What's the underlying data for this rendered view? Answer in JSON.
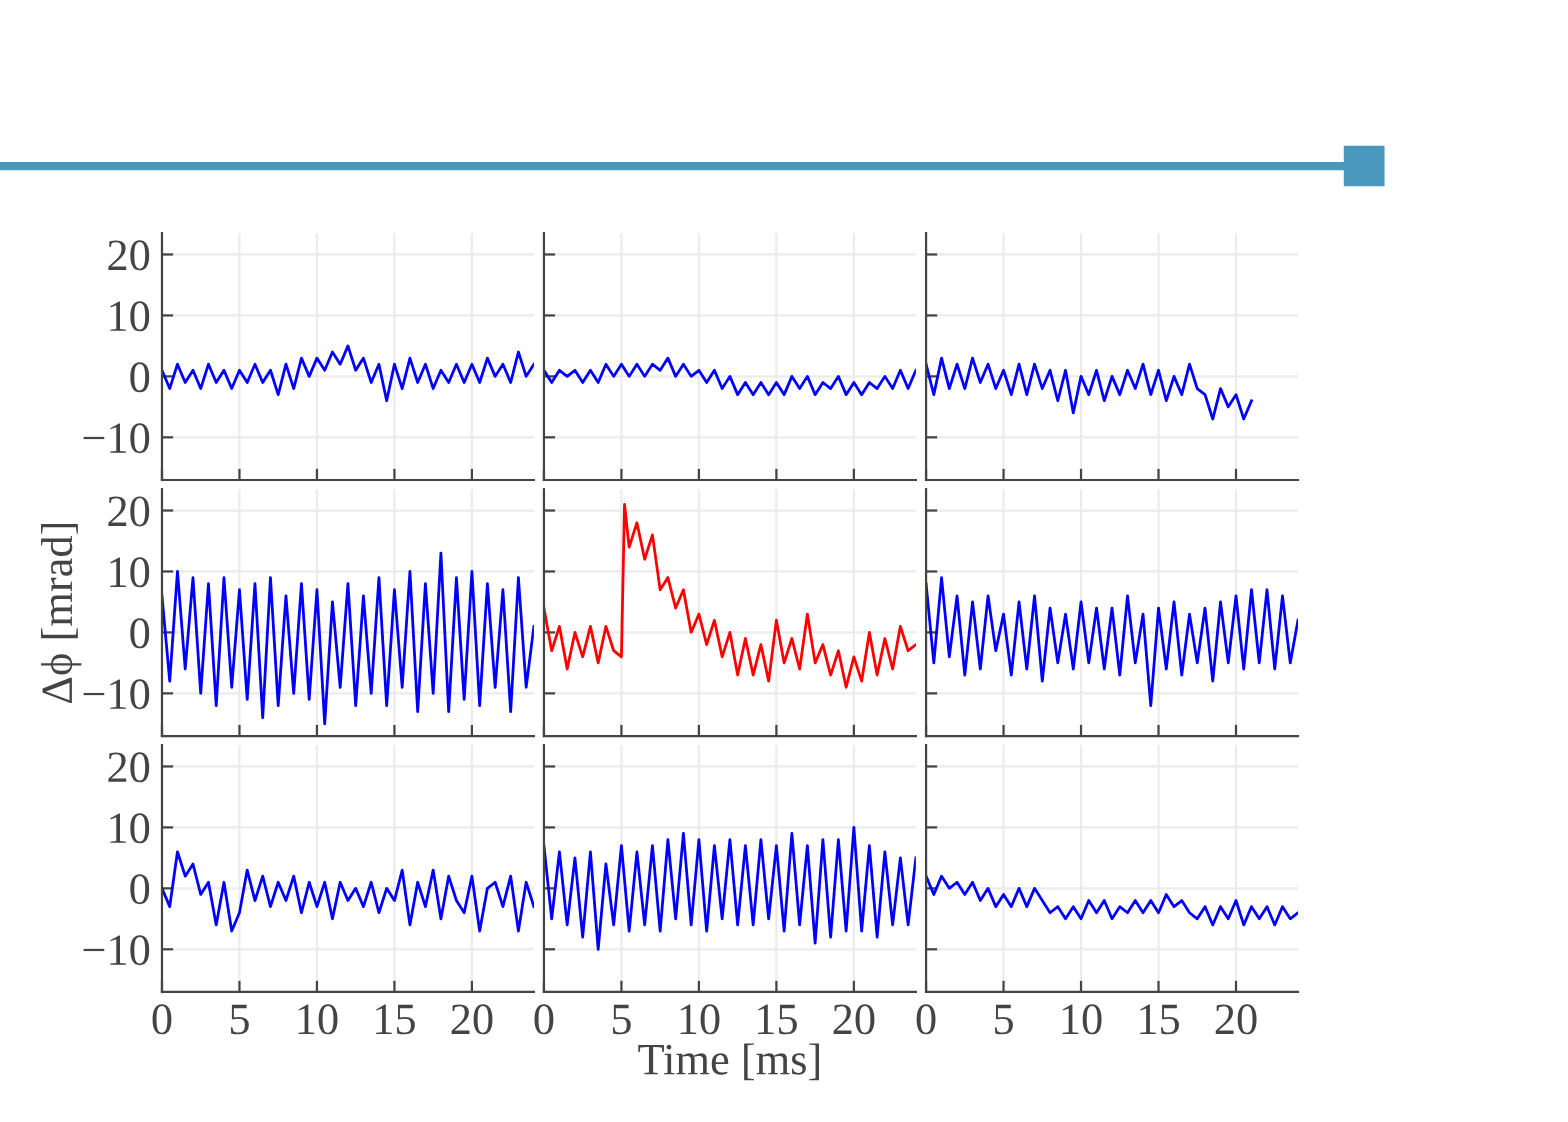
{
  "chart_data": [
    {
      "type": "line",
      "x": [
        0,
        0.5,
        1,
        1.5,
        2,
        2.5,
        3,
        3.5,
        4,
        4.5,
        5,
        5.5,
        6,
        6.5,
        7,
        7.5,
        8,
        8.5,
        9,
        9.5,
        10,
        10.5,
        11,
        11.5,
        12,
        12.5,
        13,
        13.5,
        14,
        14.5,
        15,
        15.5,
        16,
        16.5,
        17,
        17.5,
        18,
        18.5,
        19,
        19.5,
        20,
        20.5,
        21,
        21.5,
        22,
        22.5,
        23,
        23.5,
        24
      ],
      "series": [
        {
          "color": "#0000ff",
          "values": [
            1,
            -2,
            2,
            -1,
            1,
            -2,
            2,
            -1,
            1,
            -2,
            1,
            -1,
            2,
            -1,
            1,
            -3,
            2,
            -2,
            3,
            0,
            3,
            1,
            4,
            2,
            5,
            1,
            3,
            -1,
            2,
            -4,
            2,
            -2,
            3,
            -1,
            2,
            -2,
            1,
            -1,
            2,
            -1,
            2,
            -1,
            3,
            0,
            2,
            -1,
            4,
            0,
            2
          ]
        }
      ],
      "xlim": [
        0,
        24
      ],
      "ylim": [
        -17,
        23.5
      ],
      "xticks": [
        0,
        5,
        10,
        15,
        20
      ],
      "yticks": [
        -10,
        0,
        10,
        20
      ],
      "grid": true,
      "tick_labels": "y"
    },
    {
      "type": "line",
      "x": [
        0,
        0.5,
        1,
        1.5,
        2,
        2.5,
        3,
        3.5,
        4,
        4.5,
        5,
        5.5,
        6,
        6.5,
        7,
        7.5,
        8,
        8.5,
        9,
        9.5,
        10,
        10.5,
        11,
        11.5,
        12,
        12.5,
        13,
        13.5,
        14,
        14.5,
        15,
        15.5,
        16,
        16.5,
        17,
        17.5,
        18,
        18.5,
        19,
        19.5,
        20,
        20.5,
        21,
        21.5,
        22,
        22.5,
        23,
        23.5,
        24
      ],
      "series": [
        {
          "color": "#0000ff",
          "values": [
            1,
            -1,
            1,
            0,
            1,
            -1,
            1,
            -1,
            2,
            0,
            2,
            0,
            2,
            0,
            2,
            1,
            3,
            0,
            2,
            0,
            1,
            -1,
            1,
            -2,
            0,
            -3,
            -1,
            -3,
            -1,
            -3,
            -1,
            -3,
            0,
            -2,
            0,
            -3,
            -1,
            -2,
            0,
            -3,
            -1,
            -3,
            -1,
            -2,
            0,
            -2,
            1,
            -2,
            1
          ]
        }
      ],
      "xlim": [
        0,
        24
      ],
      "ylim": [
        -17,
        23.5
      ],
      "xticks": [
        0,
        5,
        10,
        15,
        20
      ],
      "yticks": [
        -10,
        0,
        10,
        20
      ],
      "grid": true,
      "tick_labels": false
    },
    {
      "type": "line",
      "x": [
        0,
        0.5,
        1,
        1.5,
        2,
        2.5,
        3,
        3.5,
        4,
        4.5,
        5,
        5.5,
        6,
        6.5,
        7,
        7.5,
        8,
        8.5,
        9,
        9.5,
        10,
        10.5,
        11,
        11.5,
        12,
        12.5,
        13,
        13.5,
        14,
        14.5,
        15,
        15.5,
        16,
        16.5,
        17,
        17.5,
        18,
        18.5,
        19,
        19.5,
        20,
        20.5,
        21
      ],
      "series": [
        {
          "color": "#0000ff",
          "values": [
            2,
            -3,
            3,
            -2,
            2,
            -2,
            3,
            -1,
            2,
            -2,
            1,
            -3,
            2,
            -3,
            2,
            -2,
            1,
            -4,
            1,
            -6,
            0,
            -3,
            1,
            -4,
            0,
            -3,
            1,
            -2,
            2,
            -3,
            1,
            -4,
            0,
            -3,
            2,
            -2,
            -3,
            -7,
            -2,
            -5,
            -3,
            -7,
            -4
          ]
        }
      ],
      "xlim": [
        0,
        24
      ],
      "ylim": [
        -17,
        23.5
      ],
      "xticks": [
        0,
        5,
        10,
        15,
        20
      ],
      "yticks": [
        -10,
        0,
        10,
        20
      ],
      "grid": true,
      "tick_labels": false
    },
    {
      "type": "line",
      "x": [
        0,
        0.5,
        1,
        1.5,
        2,
        2.5,
        3,
        3.5,
        4,
        4.5,
        5,
        5.5,
        6,
        6.5,
        7,
        7.5,
        8,
        8.5,
        9,
        9.5,
        10,
        10.5,
        11,
        11.5,
        12,
        12.5,
        13,
        13.5,
        14,
        14.5,
        15,
        15.5,
        16,
        16.5,
        17,
        17.5,
        18,
        18.5,
        19,
        19.5,
        20,
        20.5,
        21,
        21.5,
        22,
        22.5,
        23,
        23.5,
        24
      ],
      "series": [
        {
          "color": "#0000ff",
          "values": [
            6,
            -8,
            10,
            -6,
            9,
            -10,
            8,
            -12,
            9,
            -9,
            7,
            -11,
            8,
            -14,
            9,
            -12,
            6,
            -10,
            8,
            -11,
            7,
            -15,
            5,
            -9,
            8,
            -12,
            6,
            -10,
            9,
            -12,
            7,
            -9,
            10,
            -13,
            8,
            -10,
            13,
            -13,
            9,
            -11,
            10,
            -12,
            8,
            -9,
            7,
            -13,
            9,
            -9,
            1
          ]
        }
      ],
      "xlim": [
        0,
        24
      ],
      "ylim": [
        -17,
        23.5
      ],
      "xticks": [
        0,
        5,
        10,
        15,
        20
      ],
      "yticks": [
        -10,
        0,
        10,
        20
      ],
      "grid": true,
      "tick_labels": "y",
      "ylabel": "Δϕ [mrad]"
    },
    {
      "type": "line",
      "x": [
        0,
        0.5,
        1,
        1.5,
        2,
        2.5,
        3,
        3.5,
        4,
        4.5,
        5,
        5.2,
        5.5,
        6,
        6.5,
        7,
        7.5,
        8,
        8.5,
        9,
        9.5,
        10,
        10.5,
        11,
        11.5,
        12,
        12.5,
        13,
        13.5,
        14,
        14.5,
        15,
        15.5,
        16,
        16.5,
        17,
        17.5,
        18,
        18.5,
        19,
        19.5,
        20,
        20.5,
        21,
        21.5,
        22,
        22.5,
        23,
        23.5,
        24
      ],
      "series": [
        {
          "color": "#ff0000",
          "values": [
            4,
            -3,
            1,
            -6,
            0,
            -4,
            1,
            -5,
            1,
            -3,
            -4,
            21,
            14,
            18,
            12,
            16,
            7,
            9,
            4,
            7,
            0,
            3,
            -2,
            2,
            -4,
            0,
            -7,
            -1,
            -7,
            -2,
            -8,
            2,
            -5,
            -1,
            -6,
            3,
            -5,
            -2,
            -7,
            -3,
            -9,
            -4,
            -8,
            0,
            -7,
            -1,
            -6,
            1,
            -3,
            -2
          ]
        }
      ],
      "xlim": [
        0,
        24
      ],
      "ylim": [
        -17,
        23.5
      ],
      "xticks": [
        0,
        5,
        10,
        15,
        20
      ],
      "yticks": [
        -10,
        0,
        10,
        20
      ],
      "grid": true,
      "tick_labels": false
    },
    {
      "type": "line",
      "x": [
        0,
        0.5,
        1,
        1.5,
        2,
        2.5,
        3,
        3.5,
        4,
        4.5,
        5,
        5.5,
        6,
        6.5,
        7,
        7.5,
        8,
        8.5,
        9,
        9.5,
        10,
        10.5,
        11,
        11.5,
        12,
        12.5,
        13,
        13.5,
        14,
        14.5,
        15,
        15.5,
        16,
        16.5,
        17,
        17.5,
        18,
        18.5,
        19,
        19.5,
        20,
        20.5,
        21,
        21.5,
        22,
        22.5,
        23,
        23.5,
        24
      ],
      "series": [
        {
          "color": "#0000ff",
          "values": [
            8,
            -5,
            9,
            -4,
            6,
            -7,
            5,
            -6,
            6,
            -3,
            3,
            -7,
            5,
            -6,
            6,
            -8,
            4,
            -5,
            3,
            -6,
            5,
            -5,
            4,
            -6,
            4,
            -7,
            6,
            -5,
            3,
            -12,
            4,
            -6,
            5,
            -7,
            3,
            -5,
            4,
            -8,
            5,
            -5,
            6,
            -6,
            7,
            -5,
            7,
            -6,
            6,
            -5,
            2
          ]
        }
      ],
      "xlim": [
        0,
        24
      ],
      "ylim": [
        -17,
        23.5
      ],
      "xticks": [
        0,
        5,
        10,
        15,
        20
      ],
      "yticks": [
        -10,
        0,
        10,
        20
      ],
      "grid": true,
      "tick_labels": false
    },
    {
      "type": "line",
      "x": [
        0,
        0.5,
        1,
        1.5,
        2,
        2.5,
        3,
        3.5,
        4,
        4.5,
        5,
        5.5,
        6,
        6.5,
        7,
        7.5,
        8,
        8.5,
        9,
        9.5,
        10,
        10.5,
        11,
        11.5,
        12,
        12.5,
        13,
        13.5,
        14,
        14.5,
        15,
        15.5,
        16,
        16.5,
        17,
        17.5,
        18,
        18.5,
        19,
        19.5,
        20,
        20.5,
        21,
        21.5,
        22,
        22.5,
        23,
        23.5,
        24
      ],
      "series": [
        {
          "color": "#0000ff",
          "values": [
            0,
            -3,
            6,
            2,
            4,
            -1,
            1,
            -6,
            1,
            -7,
            -4,
            3,
            -2,
            2,
            -3,
            1,
            -2,
            2,
            -4,
            1,
            -3,
            1,
            -5,
            1,
            -2,
            0,
            -3,
            1,
            -4,
            0,
            -2,
            3,
            -6,
            1,
            -3,
            3,
            -5,
            2,
            -2,
            -4,
            2,
            -7,
            0,
            1,
            -3,
            2,
            -7,
            1,
            -3
          ]
        }
      ],
      "xlim": [
        0,
        24
      ],
      "ylim": [
        -17,
        23.5
      ],
      "xticks": [
        0,
        5,
        10,
        15,
        20
      ],
      "yticks": [
        -10,
        0,
        10,
        20
      ],
      "grid": true
    },
    {
      "type": "line",
      "x": [
        0,
        0.5,
        1,
        1.5,
        2,
        2.5,
        3,
        3.5,
        4,
        4.5,
        5,
        5.5,
        6,
        6.5,
        7,
        7.5,
        8,
        8.5,
        9,
        9.5,
        10,
        10.5,
        11,
        11.5,
        12,
        12.5,
        13,
        13.5,
        14,
        14.5,
        15,
        15.5,
        16,
        16.5,
        17,
        17.5,
        18,
        18.5,
        19,
        19.5,
        20,
        20.5,
        21,
        21.5,
        22,
        22.5,
        23,
        23.5,
        24
      ],
      "series": [
        {
          "color": "#0000ff",
          "values": [
            7,
            -5,
            6,
            -6,
            5,
            -8,
            6,
            -10,
            4,
            -6,
            7,
            -7,
            6,
            -6,
            7,
            -7,
            8,
            -5,
            9,
            -6,
            8,
            -7,
            7,
            -5,
            8,
            -6,
            7,
            -6,
            8,
            -5,
            7,
            -7,
            9,
            -6,
            7,
            -9,
            8,
            -8,
            8,
            -7,
            10,
            -7,
            7,
            -8,
            6,
            -6,
            5,
            -6,
            5
          ]
        }
      ],
      "xlim": [
        0,
        24
      ],
      "ylim": [
        -17,
        23.5
      ],
      "xticks": [
        0,
        5,
        10,
        15,
        20
      ],
      "yticks": [
        -10,
        0,
        10,
        20
      ],
      "grid": true,
      "tick_labels": "x",
      "xlabel": "Time [ms]"
    },
    {
      "type": "line",
      "x": [
        0,
        0.5,
        1,
        1.5,
        2,
        2.5,
        3,
        3.5,
        4,
        4.5,
        5,
        5.5,
        6,
        6.5,
        7,
        7.5,
        8,
        8.5,
        9,
        9.5,
        10,
        10.5,
        11,
        11.5,
        12,
        12.5,
        13,
        13.5,
        14,
        14.5,
        15,
        15.5,
        16,
        16.5,
        17,
        17.5,
        18,
        18.5,
        19,
        19.5,
        20,
        20.5,
        21,
        21.5,
        22,
        22.5,
        23,
        23.5,
        24
      ],
      "series": [
        {
          "color": "#0000ff",
          "values": [
            2,
            -1,
            2,
            0,
            1,
            -1,
            1,
            -2,
            0,
            -3,
            -1,
            -3,
            0,
            -3,
            0,
            -2,
            -4,
            -3,
            -5,
            -3,
            -5,
            -2,
            -4,
            -2,
            -5,
            -3,
            -4,
            -2,
            -4,
            -2,
            -4,
            -1,
            -3,
            -2,
            -4,
            -5,
            -3,
            -6,
            -3,
            -5,
            -2,
            -6,
            -3,
            -5,
            -3,
            -6,
            -3,
            -5,
            -4
          ]
        }
      ],
      "xlim": [
        0,
        24
      ],
      "ylim": [
        -17,
        23.5
      ],
      "xticks": [
        0,
        5,
        10,
        15,
        20
      ],
      "yticks": [
        -10,
        0,
        10,
        20
      ],
      "grid": true,
      "tick_labels": "x"
    }
  ]
}
